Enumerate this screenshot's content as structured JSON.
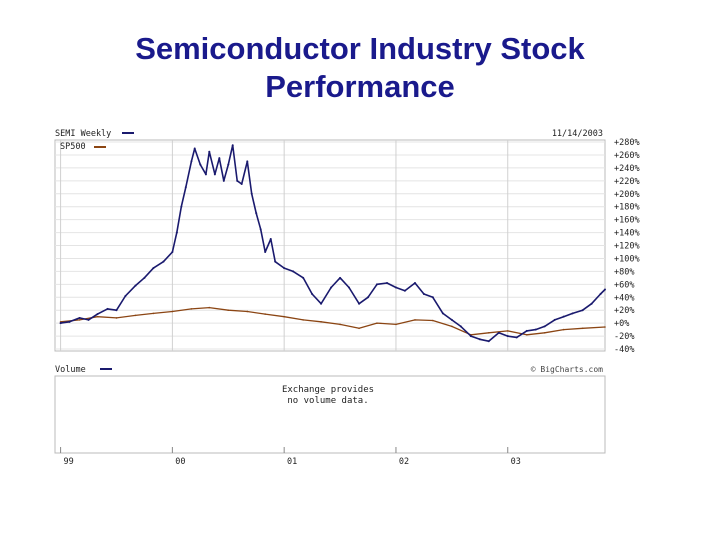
{
  "slide": {
    "title_line1": "Semiconductor Industry Stock",
    "title_line2": "Performance"
  },
  "chart_data": {
    "type": "line",
    "title": "",
    "date": "11/14/2003",
    "credit": "© BigCharts.com",
    "ylim": [
      -40,
      280
    ],
    "y_ticks": [
      "+280%",
      "+260%",
      "+240%",
      "+220%",
      "+200%",
      "+180%",
      "+160%",
      "+140%",
      "+120%",
      "+100%",
      "+80%",
      "+60%",
      "+40%",
      "+20%",
      "+0%",
      "-20%",
      "-40%"
    ],
    "y_tick_values": [
      280,
      260,
      240,
      220,
      200,
      180,
      160,
      140,
      120,
      100,
      80,
      60,
      40,
      20,
      0,
      -20,
      -40
    ],
    "x_ticks": [
      "99",
      "00",
      "01",
      "02",
      "03"
    ],
    "x_tick_values": [
      1999.0,
      2000.0,
      2001.0,
      2002.0,
      2003.0
    ],
    "x_range": [
      1998.95,
      2003.87
    ],
    "legend": "top-left",
    "series": [
      {
        "name": "SEMI Weekly",
        "color": "#1a1a6e",
        "x": [
          1999.0,
          1999.08,
          1999.17,
          1999.25,
          1999.33,
          1999.42,
          1999.5,
          1999.58,
          1999.67,
          1999.75,
          1999.83,
          1999.92,
          2000.0,
          2000.04,
          2000.08,
          2000.12,
          2000.17,
          2000.2,
          2000.25,
          2000.3,
          2000.33,
          2000.38,
          2000.42,
          2000.46,
          2000.5,
          2000.54,
          2000.58,
          2000.62,
          2000.67,
          2000.71,
          2000.75,
          2000.79,
          2000.83,
          2000.88,
          2000.92,
          2001.0,
          2001.08,
          2001.17,
          2001.25,
          2001.33,
          2001.42,
          2001.5,
          2001.58,
          2001.67,
          2001.75,
          2001.83,
          2001.92,
          2002.0,
          2002.08,
          2002.17,
          2002.25,
          2002.33,
          2002.42,
          2002.5,
          2002.58,
          2002.67,
          2002.75,
          2002.83,
          2002.92,
          2003.0,
          2003.08,
          2003.17,
          2003.25,
          2003.33,
          2003.42,
          2003.5,
          2003.58,
          2003.67,
          2003.75,
          2003.83,
          2003.87
        ],
        "values": [
          0,
          2,
          8,
          5,
          14,
          22,
          20,
          42,
          58,
          70,
          85,
          95,
          110,
          140,
          180,
          210,
          250,
          270,
          245,
          230,
          265,
          230,
          255,
          220,
          245,
          275,
          220,
          215,
          250,
          200,
          170,
          145,
          110,
          130,
          95,
          85,
          80,
          70,
          45,
          30,
          55,
          70,
          55,
          30,
          40,
          60,
          62,
          55,
          50,
          62,
          45,
          40,
          15,
          5,
          -5,
          -20,
          -25,
          -28,
          -15,
          -20,
          -22,
          -12,
          -10,
          -5,
          5,
          10,
          15,
          20,
          30,
          45,
          52
        ]
      },
      {
        "name": "SP500",
        "color": "#8b4513",
        "x": [
          1999.0,
          1999.17,
          1999.33,
          1999.5,
          1999.67,
          1999.83,
          2000.0,
          2000.17,
          2000.33,
          2000.5,
          2000.67,
          2000.83,
          2001.0,
          2001.17,
          2001.33,
          2001.5,
          2001.67,
          2001.83,
          2002.0,
          2002.17,
          2002.33,
          2002.5,
          2002.67,
          2002.83,
          2003.0,
          2003.17,
          2003.33,
          2003.5,
          2003.67,
          2003.87
        ],
        "values": [
          2,
          5,
          10,
          8,
          12,
          15,
          18,
          22,
          24,
          20,
          18,
          14,
          10,
          5,
          2,
          -2,
          -8,
          0,
          -2,
          5,
          4,
          -5,
          -18,
          -15,
          -12,
          -18,
          -15,
          -10,
          -8,
          -6
        ]
      }
    ],
    "volume_panel": {
      "label": "Volume",
      "message_line1": "Exchange provides",
      "message_line2": "no volume data."
    }
  }
}
